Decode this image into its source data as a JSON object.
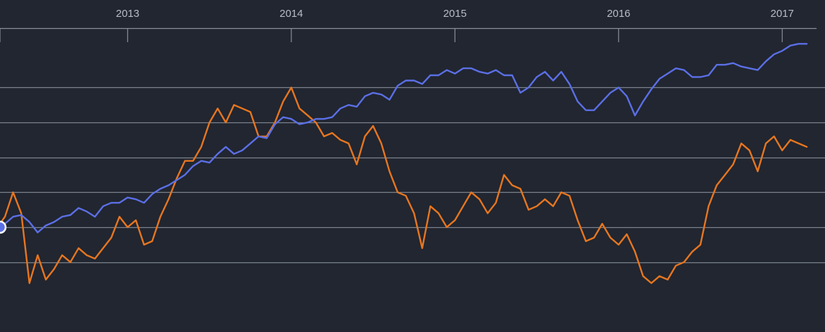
{
  "chart_data": {
    "type": "line",
    "title": "",
    "xlabel": "",
    "ylabel": "",
    "x_tick_labels": [
      "2013",
      "2014",
      "2015",
      "2016",
      "2017"
    ],
    "x_range": [
      2012.22,
      2017.27
    ],
    "y_range": [
      -3,
      5.7
    ],
    "y_gridlines": [
      -1,
      0,
      1,
      2,
      3,
      4
    ],
    "y_ticks_labeled": false,
    "grid": true,
    "legend": "none",
    "marker": {
      "series": "blue",
      "x": 2012.22,
      "y": 0
    },
    "series": [
      {
        "color": "#5b6fe6",
        "x": [
          2012.22,
          2012.25,
          2012.3,
          2012.35,
          2012.4,
          2012.45,
          2012.5,
          2012.55,
          2012.6,
          2012.65,
          2012.7,
          2012.75,
          2012.8,
          2012.85,
          2012.9,
          2012.95,
          2013.0,
          2013.05,
          2013.1,
          2013.15,
          2013.2,
          2013.25,
          2013.3,
          2013.35,
          2013.4,
          2013.45,
          2013.5,
          2013.55,
          2013.6,
          2013.65,
          2013.7,
          2013.75,
          2013.8,
          2013.85,
          2013.9,
          2013.95,
          2014.0,
          2014.05,
          2014.1,
          2014.15,
          2014.2,
          2014.25,
          2014.3,
          2014.35,
          2014.4,
          2014.45,
          2014.5,
          2014.55,
          2014.6,
          2014.65,
          2014.7,
          2014.75,
          2014.8,
          2014.85,
          2014.9,
          2014.95,
          2015.0,
          2015.05,
          2015.1,
          2015.15,
          2015.2,
          2015.25,
          2015.3,
          2015.35,
          2015.4,
          2015.45,
          2015.5,
          2015.55,
          2015.6,
          2015.65,
          2015.7,
          2015.75,
          2015.8,
          2015.85,
          2015.9,
          2015.95,
          2016.0,
          2016.05,
          2016.1,
          2016.15,
          2016.2,
          2016.25,
          2016.3,
          2016.35,
          2016.4,
          2016.45,
          2016.5,
          2016.55,
          2016.6,
          2016.65,
          2016.7,
          2016.75,
          2016.8,
          2016.85,
          2016.9,
          2016.95,
          2017.0,
          2017.05,
          2017.1,
          2017.15
        ],
        "y": [
          0,
          0.1,
          0.3,
          0.35,
          0.15,
          -0.15,
          0.05,
          0.15,
          0.3,
          0.35,
          0.55,
          0.45,
          0.3,
          0.6,
          0.7,
          0.7,
          0.85,
          0.8,
          0.7,
          0.95,
          1.1,
          1.2,
          1.35,
          1.5,
          1.75,
          1.9,
          1.85,
          2.1,
          2.3,
          2.1,
          2.2,
          2.4,
          2.6,
          2.55,
          2.95,
          3.15,
          3.1,
          2.95,
          3.0,
          3.1,
          3.1,
          3.15,
          3.4,
          3.5,
          3.45,
          3.75,
          3.85,
          3.8,
          3.65,
          4.05,
          4.2,
          4.2,
          4.1,
          4.35,
          4.35,
          4.5,
          4.4,
          4.55,
          4.55,
          4.45,
          4.4,
          4.5,
          4.35,
          4.35,
          3.85,
          4.0,
          4.3,
          4.45,
          4.2,
          4.45,
          4.1,
          3.6,
          3.35,
          3.35,
          3.6,
          3.85,
          4.0,
          3.75,
          3.2,
          3.6,
          3.95,
          4.25,
          4.4,
          4.55,
          4.5,
          4.3,
          4.3,
          4.35,
          4.65,
          4.65,
          4.7,
          4.6,
          4.55,
          4.5,
          4.75,
          4.95,
          5.05,
          5.2,
          5.25,
          5.25
        ]
      },
      {
        "color": "#e8761f",
        "x": [
          2012.22,
          2012.25,
          2012.3,
          2012.35,
          2012.4,
          2012.45,
          2012.5,
          2012.55,
          2012.6,
          2012.65,
          2012.7,
          2012.75,
          2012.8,
          2012.85,
          2012.9,
          2012.95,
          2013.0,
          2013.05,
          2013.1,
          2013.15,
          2013.2,
          2013.25,
          2013.3,
          2013.35,
          2013.4,
          2013.45,
          2013.5,
          2013.55,
          2013.6,
          2013.65,
          2013.7,
          2013.75,
          2013.8,
          2013.85,
          2013.9,
          2013.95,
          2014.0,
          2014.05,
          2014.1,
          2014.15,
          2014.2,
          2014.25,
          2014.3,
          2014.35,
          2014.4,
          2014.45,
          2014.5,
          2014.55,
          2014.6,
          2014.65,
          2014.7,
          2014.75,
          2014.8,
          2014.85,
          2014.9,
          2014.95,
          2015.0,
          2015.05,
          2015.1,
          2015.15,
          2015.2,
          2015.25,
          2015.3,
          2015.35,
          2015.4,
          2015.45,
          2015.5,
          2015.55,
          2015.6,
          2015.65,
          2015.7,
          2015.75,
          2015.8,
          2015.85,
          2015.9,
          2015.95,
          2016.0,
          2016.05,
          2016.1,
          2016.15,
          2016.2,
          2016.25,
          2016.3,
          2016.35,
          2016.4,
          2016.45,
          2016.5,
          2016.55,
          2016.6,
          2016.65,
          2016.7,
          2016.75,
          2016.8,
          2016.85,
          2016.9,
          2016.95,
          2017.0,
          2017.05,
          2017.1,
          2017.15
        ],
        "y": [
          0.1,
          0.3,
          1.0,
          0.4,
          -1.6,
          -0.8,
          -1.5,
          -1.2,
          -0.8,
          -1.0,
          -0.6,
          -0.8,
          -0.9,
          -0.6,
          -0.3,
          0.3,
          0.0,
          0.2,
          -0.5,
          -0.4,
          0.3,
          0.8,
          1.4,
          1.9,
          1.9,
          2.3,
          3.0,
          3.4,
          3.0,
          3.5,
          3.4,
          3.3,
          2.6,
          2.6,
          3.0,
          3.6,
          4.0,
          3.4,
          3.2,
          3.0,
          2.6,
          2.7,
          2.5,
          2.4,
          1.8,
          2.6,
          2.9,
          2.4,
          1.6,
          1.0,
          0.9,
          0.4,
          -0.6,
          0.6,
          0.4,
          0.0,
          0.2,
          0.6,
          1.0,
          0.8,
          0.4,
          0.7,
          1.5,
          1.2,
          1.1,
          0.5,
          0.6,
          0.8,
          0.6,
          1.0,
          0.9,
          0.2,
          -0.4,
          -0.3,
          0.1,
          -0.3,
          -0.5,
          -0.2,
          -0.7,
          -1.4,
          -1.6,
          -1.4,
          -1.5,
          -1.1,
          -1.0,
          -0.7,
          -0.5,
          0.6,
          1.2,
          1.5,
          1.8,
          2.4,
          2.2,
          1.6,
          2.4,
          2.6,
          2.2,
          2.5,
          2.4,
          2.3
        ]
      }
    ]
  }
}
